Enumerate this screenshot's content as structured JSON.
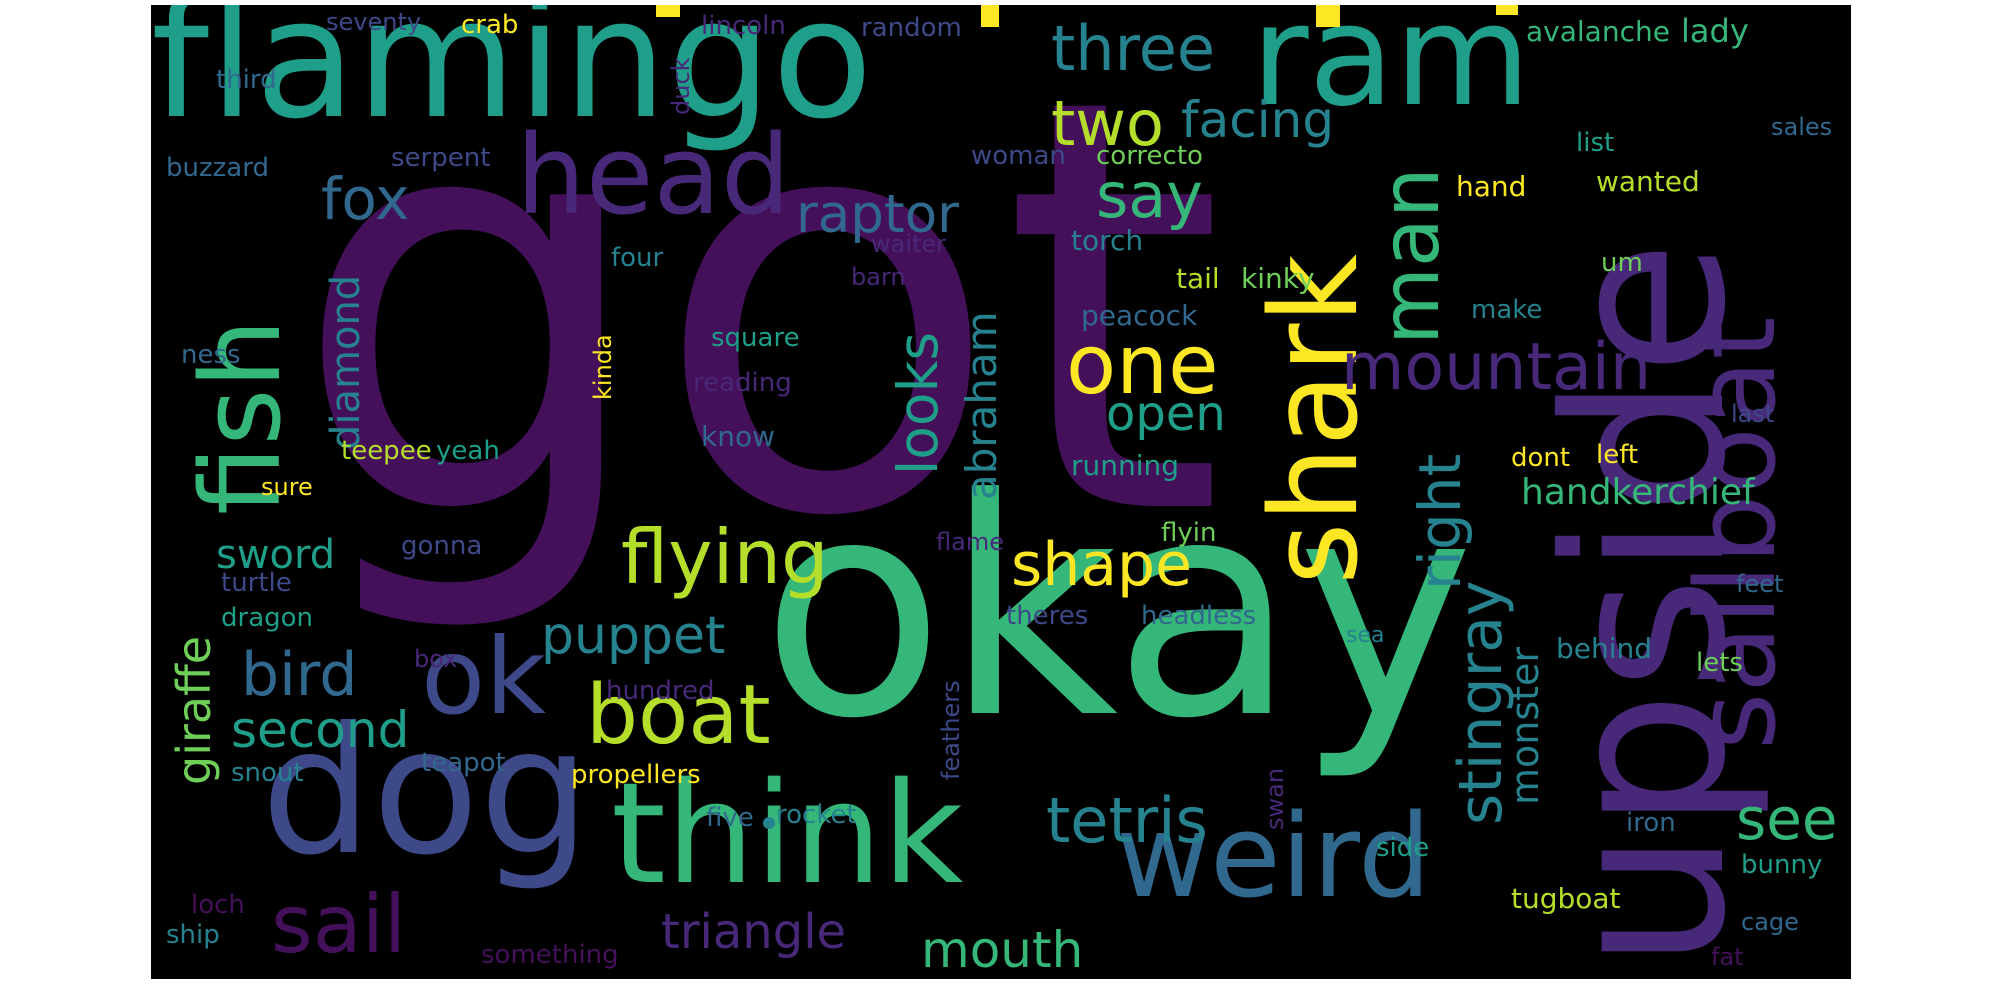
{
  "palette": {
    "dark_purple": "#45105a",
    "purple": "#482878",
    "indigo": "#3e4989",
    "slate": "#31688e",
    "teal": "#26828e",
    "sea": "#1f9e89",
    "green": "#35b779",
    "lime": "#6ece58",
    "yellow_green": "#b5de2b",
    "yellow": "#fde725",
    "background": "#000000"
  },
  "words": [
    {
      "text": "got"
    },
    {
      "text": "okay"
    },
    {
      "text": "upside"
    },
    {
      "text": "flamingo"
    },
    {
      "text": "ram"
    },
    {
      "text": "dog"
    },
    {
      "text": "think"
    },
    {
      "text": "weird"
    },
    {
      "text": "sailboat"
    },
    {
      "text": "shark"
    },
    {
      "text": "head"
    },
    {
      "text": "fish"
    },
    {
      "text": "ok"
    },
    {
      "text": "man"
    },
    {
      "text": "boat"
    },
    {
      "text": "flying"
    },
    {
      "text": "one"
    },
    {
      "text": "mountain"
    },
    {
      "text": "three"
    },
    {
      "text": "two"
    },
    {
      "text": "facing"
    },
    {
      "text": "say"
    },
    {
      "text": "fox"
    },
    {
      "text": "raptor"
    },
    {
      "text": "looks"
    },
    {
      "text": "right"
    },
    {
      "text": "stingray"
    },
    {
      "text": "tetris"
    },
    {
      "text": "sail"
    },
    {
      "text": "shape"
    },
    {
      "text": "bird"
    },
    {
      "text": "puppet"
    },
    {
      "text": "second"
    },
    {
      "text": "triangle"
    },
    {
      "text": "mouth"
    },
    {
      "text": "see"
    },
    {
      "text": "giraffe"
    },
    {
      "text": "diamond"
    },
    {
      "text": "abraham"
    },
    {
      "text": "open"
    },
    {
      "text": "monster"
    },
    {
      "text": "handkerchief"
    },
    {
      "text": "sword"
    },
    {
      "text": "lady"
    },
    {
      "text": "avalanche"
    },
    {
      "text": "seventy"
    },
    {
      "text": "crab"
    },
    {
      "text": "lincoln"
    },
    {
      "text": "random"
    },
    {
      "text": "third"
    },
    {
      "text": "duck"
    },
    {
      "text": "sales"
    },
    {
      "text": "list"
    },
    {
      "text": "buzzard"
    },
    {
      "text": "serpent"
    },
    {
      "text": "woman"
    },
    {
      "text": "correcto"
    },
    {
      "text": "hand"
    },
    {
      "text": "wanted"
    },
    {
      "text": "torch"
    },
    {
      "text": "waiter"
    },
    {
      "text": "four"
    },
    {
      "text": "barn"
    },
    {
      "text": "um"
    },
    {
      "text": "tail"
    },
    {
      "text": "kinky"
    },
    {
      "text": "peacock"
    },
    {
      "text": "make"
    },
    {
      "text": "square"
    },
    {
      "text": "kinda"
    },
    {
      "text": "ness"
    },
    {
      "text": "reading"
    },
    {
      "text": "last"
    },
    {
      "text": "know"
    },
    {
      "text": "teepee"
    },
    {
      "text": "yeah"
    },
    {
      "text": "running"
    },
    {
      "text": "dont"
    },
    {
      "text": "left"
    },
    {
      "text": "sure"
    },
    {
      "text": "flame"
    },
    {
      "text": "flyin"
    },
    {
      "text": "gonna"
    },
    {
      "text": "turtle"
    },
    {
      "text": "theres"
    },
    {
      "text": "headless"
    },
    {
      "text": "feet"
    },
    {
      "text": "dragon"
    },
    {
      "text": "sea"
    },
    {
      "text": "feathers"
    },
    {
      "text": "box"
    },
    {
      "text": "behind"
    },
    {
      "text": "lets"
    },
    {
      "text": "hundred"
    },
    {
      "text": "snout"
    },
    {
      "text": "teapot"
    },
    {
      "text": "propellers"
    },
    {
      "text": "swan"
    },
    {
      "text": "five"
    },
    {
      "text": "rocket"
    },
    {
      "text": "iron"
    },
    {
      "text": "side"
    },
    {
      "text": "bunny"
    },
    {
      "text": "loch"
    },
    {
      "text": "tugboat"
    },
    {
      "text": "ship"
    },
    {
      "text": "something"
    },
    {
      "text": "cage"
    },
    {
      "text": "fat"
    }
  ]
}
